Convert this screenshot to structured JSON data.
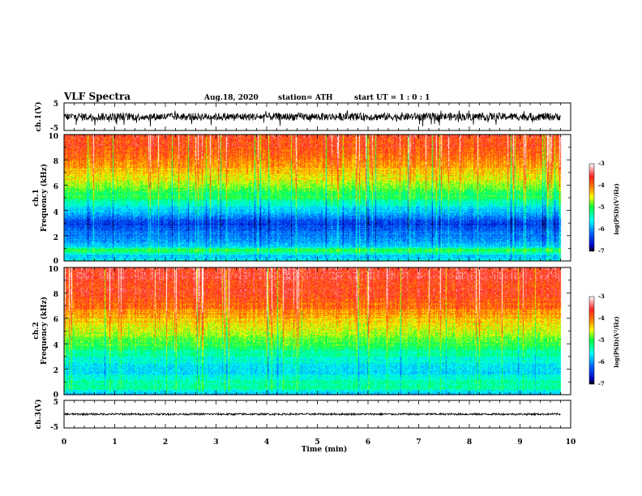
{
  "header": {
    "title": "VLF Spectra",
    "date": "Aug.18, 2020",
    "station": "station= ATH",
    "start": "start  UT =   1 : 0  : 1"
  },
  "colorbar": {
    "label": "log(PSD)(V²/Hz)",
    "ticks": [
      "-3",
      "-4",
      "-5",
      "-6",
      "-7"
    ],
    "colors": [
      "#ffffff",
      "#ff2020",
      "#ff8a00",
      "#ffff00",
      "#00ff40",
      "#00ffff",
      "#0060ff",
      "#0000c0",
      "#000000"
    ]
  },
  "chart_data": [
    {
      "type": "line",
      "panel": "ch1-waveform",
      "ylabel": "ch.1(V)",
      "ylim": [
        -5,
        5
      ],
      "ytick_labels": [
        "5",
        "-5"
      ],
      "xlim": [
        0,
        10
      ],
      "x_units": "min",
      "data_end_min": 9.8,
      "description_values": {
        "typical_range": [
          -1.6,
          1.6
        ],
        "extreme_range": [
          -4,
          1.8
        ]
      }
    },
    {
      "type": "heatmap",
      "panel": "ch1-spectrogram",
      "ylabel": "ch.1\nFrequency (kHz)",
      "ylim": [
        0,
        10
      ],
      "ytick_labels": [
        "0",
        "2",
        "4",
        "6",
        "8",
        "10"
      ],
      "xlim": [
        0,
        10
      ],
      "data_end_min": 9.8,
      "zlabel": "log(PSD)(V²/Hz)",
      "zlim": [
        -7,
        -3
      ],
      "freq_profile_logpsd": [
        {
          "f": 0.0,
          "z": -5.6
        },
        {
          "f": 0.4,
          "z": -5.8
        },
        {
          "f": 0.8,
          "z": -4.9
        },
        {
          "f": 1.2,
          "z": -5.9
        },
        {
          "f": 2.0,
          "z": -6.1
        },
        {
          "f": 3.0,
          "z": -6.4
        },
        {
          "f": 4.0,
          "z": -5.8
        },
        {
          "f": 5.0,
          "z": -5.1
        },
        {
          "f": 6.0,
          "z": -4.7
        },
        {
          "f": 7.0,
          "z": -4.3
        },
        {
          "f": 8.0,
          "z": -4.0
        },
        {
          "f": 9.0,
          "z": -3.8
        },
        {
          "f": 10.0,
          "z": -3.7
        }
      ]
    },
    {
      "type": "heatmap",
      "panel": "ch2-spectrogram",
      "ylabel": "ch.2\nFrequency (kHz)",
      "ylim": [
        0,
        10
      ],
      "ytick_labels": [
        "0",
        "2",
        "4",
        "6",
        "8",
        "10"
      ],
      "xlim": [
        0,
        10
      ],
      "data_end_min": 9.8,
      "zlabel": "log(PSD)(V²/Hz)",
      "zlim": [
        -7,
        -3
      ],
      "freq_profile_logpsd": [
        {
          "f": 0.0,
          "z": -5.9
        },
        {
          "f": 0.5,
          "z": -5.3
        },
        {
          "f": 1.0,
          "z": -5.4
        },
        {
          "f": 1.5,
          "z": -5.6
        },
        {
          "f": 2.0,
          "z": -5.8
        },
        {
          "f": 3.0,
          "z": -5.4
        },
        {
          "f": 4.0,
          "z": -5.0
        },
        {
          "f": 5.0,
          "z": -4.6
        },
        {
          "f": 6.0,
          "z": -4.3
        },
        {
          "f": 7.0,
          "z": -4.0
        },
        {
          "f": 8.0,
          "z": -3.8
        },
        {
          "f": 9.0,
          "z": -3.7
        },
        {
          "f": 10.0,
          "z": -3.6
        }
      ]
    },
    {
      "type": "line",
      "panel": "ch3-waveform",
      "ylabel": "ch.3(V)",
      "ylim": [
        -5,
        5
      ],
      "ytick_labels": [
        "5",
        "-5"
      ],
      "xlim": [
        0,
        10
      ],
      "data_end_min": 9.8,
      "description_values": {
        "level": 0,
        "range": [
          -0.4,
          0.4
        ]
      }
    }
  ],
  "xaxis": {
    "label": "Time  (min)",
    "ticks": [
      "0",
      "1",
      "2",
      "3",
      "4",
      "5",
      "6",
      "7",
      "8",
      "9",
      "10"
    ]
  }
}
